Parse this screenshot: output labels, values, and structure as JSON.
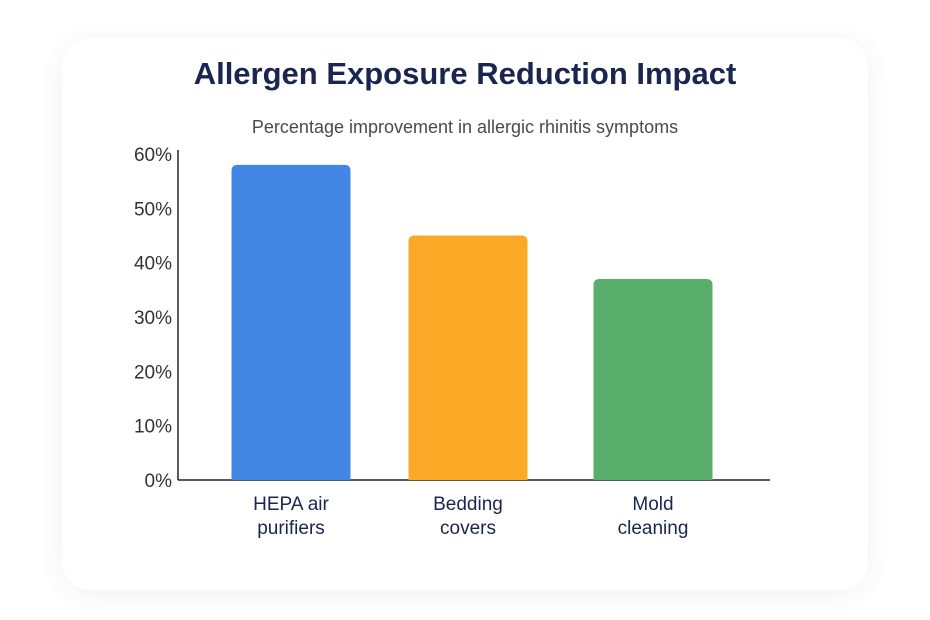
{
  "chart_data": {
    "type": "bar",
    "title": "Allergen Exposure Reduction Impact",
    "subtitle": "Percentage improvement in allergic rhinitis symptoms",
    "categories": [
      [
        "HEPA air",
        "purifiers"
      ],
      [
        "Bedding",
        "covers"
      ],
      [
        "Mold",
        "cleaning"
      ]
    ],
    "values": [
      58,
      45,
      37
    ],
    "colors": [
      "#4287e4",
      "#fca928",
      "#58ae6a"
    ],
    "yticks": [
      "0%",
      "10%",
      "20%",
      "30%",
      "40%",
      "50%",
      "60%"
    ],
    "ylim": [
      0,
      60
    ],
    "grid": false,
    "xlabel": "",
    "ylabel": ""
  }
}
